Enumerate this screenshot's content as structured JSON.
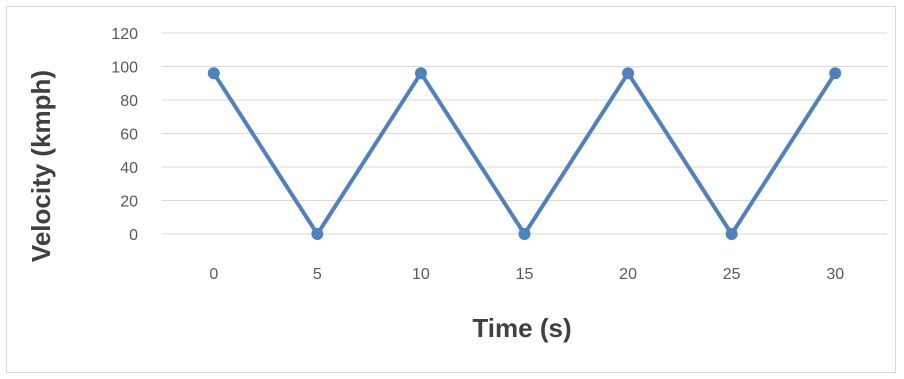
{
  "chart_data": {
    "type": "line",
    "title": "",
    "xlabel": "Time (s)",
    "ylabel": "Velocity (kmph)",
    "categories": [
      "0",
      "5",
      "10",
      "15",
      "20",
      "25",
      "30"
    ],
    "x": [
      0,
      5,
      10,
      15,
      20,
      25,
      30
    ],
    "series": [
      {
        "values": [
          96,
          0,
          96,
          0,
          96,
          0,
          96
        ]
      }
    ],
    "yticks": [
      "0",
      "20",
      "40",
      "60",
      "80",
      "100",
      "120"
    ],
    "ylim": [
      0,
      120
    ],
    "grid": true,
    "legend": "none",
    "colors": {
      "series": "#4f81bd",
      "grid": "#d9d9d9",
      "tick_text": "#595959",
      "axis_title": "#404040"
    }
  }
}
